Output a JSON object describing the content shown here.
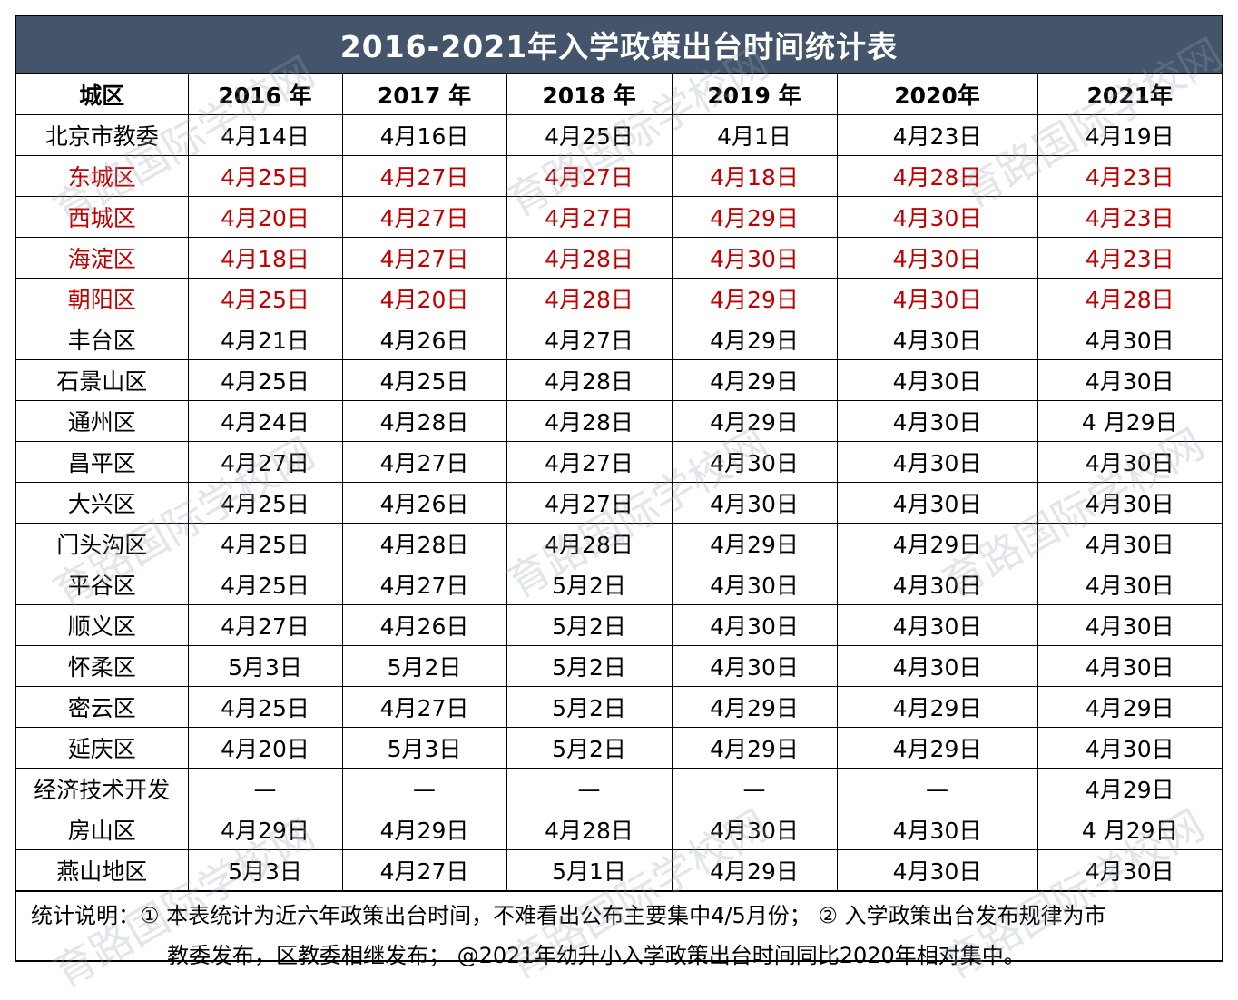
{
  "title": "2016-2021年入学政策出台时间统计表",
  "headers": [
    "城区",
    "2016 年",
    "2017 年",
    "2018 年",
    "2019 年",
    "2020年",
    "2021年"
  ],
  "rows": [
    {
      "district": "北京市教委",
      "values": [
        "4月14日",
        "4月16日",
        "4月25日",
        "4月1日",
        "4月23日",
        "4月19日"
      ],
      "highlight": false
    },
    {
      "district": "东城区",
      "values": [
        "4月25日",
        "4月27日",
        "4月27日",
        "4月18日",
        "4月28日",
        "4月23日"
      ],
      "highlight": true
    },
    {
      "district": "西城区",
      "values": [
        "4月20日",
        "4月27日",
        "4月27日",
        "4月29日",
        "4月30日",
        "4月23日"
      ],
      "highlight": true
    },
    {
      "district": "海淀区",
      "values": [
        "4月18日",
        "4月27日",
        "4月28日",
        "4月30日",
        "4月30日",
        "4月23日"
      ],
      "highlight": true
    },
    {
      "district": "朝阳区",
      "values": [
        "4月25日",
        "4月20日",
        "4月28日",
        "4月29日",
        "4月30日",
        "4月28日"
      ],
      "highlight": true
    },
    {
      "district": "丰台区",
      "values": [
        "4月21日",
        "4月26日",
        "4月27日",
        "4月29日",
        "4月30日",
        "4月30日"
      ],
      "highlight": false
    },
    {
      "district": "石景山区",
      "values": [
        "4月25日",
        "4月25日",
        "4月28日",
        "4月29日",
        "4月30日",
        "4月30日"
      ],
      "highlight": false
    },
    {
      "district": "通州区",
      "values": [
        "4月24日",
        "4月28日",
        "4月28日",
        "4月29日",
        "4月30日",
        "4 月29日"
      ],
      "highlight": false
    },
    {
      "district": "昌平区",
      "values": [
        "4月27日",
        "4月27日",
        "4月27日",
        "4月30日",
        "4月30日",
        "4月30日"
      ],
      "highlight": false
    },
    {
      "district": "大兴区",
      "values": [
        "4月25日",
        "4月26日",
        "4月27日",
        "4月30日",
        "4月30日",
        "4月30日"
      ],
      "highlight": false
    },
    {
      "district": "门头沟区",
      "values": [
        "4月25日",
        "4月28日",
        "4月28日",
        "4月29日",
        "4月29日",
        "4月30日"
      ],
      "highlight": false
    },
    {
      "district": "平谷区",
      "values": [
        "4月25日",
        "4月27日",
        "5月2日",
        "4月30日",
        "4月30日",
        "4月30日"
      ],
      "highlight": false
    },
    {
      "district": "顺义区",
      "values": [
        "4月27日",
        "4月26日",
        "5月2日",
        "4月30日",
        "4月30日",
        "4月30日"
      ],
      "highlight": false
    },
    {
      "district": "怀柔区",
      "values": [
        "5月3日",
        "5月2日",
        "5月2日",
        "4月30日",
        "4月30日",
        "4月30日"
      ],
      "highlight": false
    },
    {
      "district": "密云区",
      "values": [
        "4月25日",
        "4月27日",
        "5月2日",
        "4月29日",
        "4月29日",
        "4月29日"
      ],
      "highlight": false
    },
    {
      "district": "延庆区",
      "values": [
        "4月20日",
        "5月3日",
        "5月2日",
        "4月29日",
        "4月29日",
        "4月30日"
      ],
      "highlight": false
    },
    {
      "district": "经济技术开发",
      "values": [
        "—",
        "—",
        "—",
        "—",
        "—",
        "4月29日"
      ],
      "highlight": false
    },
    {
      "district": "房山区",
      "values": [
        "4月29日",
        "4月29日",
        "4月28日",
        "4月30日",
        "4月30日",
        "4 月29日"
      ],
      "highlight": false
    },
    {
      "district": "燕山地区",
      "values": [
        "5月3日",
        "4月27日",
        "5月1日",
        "4月29日",
        "4月30日",
        "4月30日"
      ],
      "highlight": false
    }
  ],
  "note": {
    "line1": "统计说明：① 本表统计为近六年政策出台时间，不难看出公布主要集中4/5月份； ② 入学政策出台发布规律为市",
    "line2": "教委发布，区教委相继发布； @2021年幼升小入学政策出台时间同比2020年相对集中。"
  },
  "watermark": "育路国际学校网",
  "colors": {
    "title_bg": "#44546a",
    "highlight_text": "#c00000"
  }
}
